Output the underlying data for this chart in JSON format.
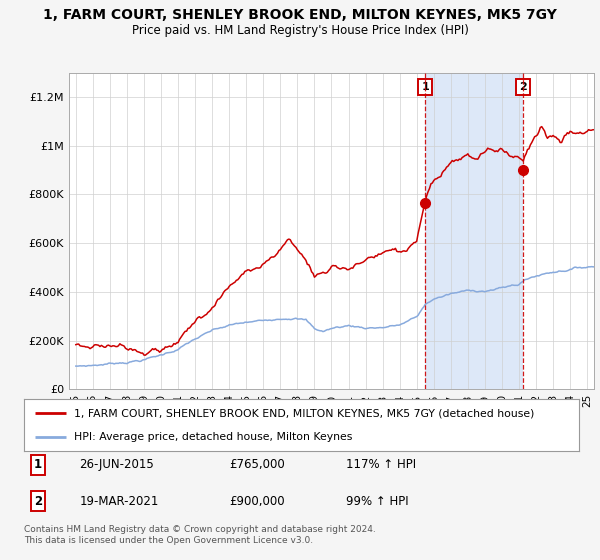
{
  "title": "1, FARM COURT, SHENLEY BROOK END, MILTON KEYNES, MK5 7GY",
  "subtitle": "Price paid vs. HM Land Registry's House Price Index (HPI)",
  "legend_line1": "1, FARM COURT, SHENLEY BROOK END, MILTON KEYNES, MK5 7GY (detached house)",
  "legend_line2": "HPI: Average price, detached house, Milton Keynes",
  "annotation1_label": "1",
  "annotation1_date": "26-JUN-2015",
  "annotation1_price": "£765,000",
  "annotation1_hpi": "117% ↑ HPI",
  "annotation2_label": "2",
  "annotation2_date": "19-MAR-2021",
  "annotation2_price": "£900,000",
  "annotation2_hpi": "99% ↑ HPI",
  "footnote": "Contains HM Land Registry data © Crown copyright and database right 2024.\nThis data is licensed under the Open Government Licence v3.0.",
  "red_color": "#cc0000",
  "blue_color": "#88aadd",
  "shade_color": "#dde8f8",
  "background_color": "#f5f5f5",
  "plot_bg_color": "#ffffff",
  "ylim": [
    0,
    1300000
  ],
  "yticks": [
    0,
    200000,
    400000,
    600000,
    800000,
    1000000,
    1200000
  ],
  "ytick_labels": [
    "£0",
    "£200K",
    "£400K",
    "£600K",
    "£800K",
    "£1M",
    "£1.2M"
  ],
  "sale1_year": 2015.5,
  "sale1_value": 765000,
  "sale2_year": 2021.22,
  "sale2_value": 900000,
  "xmin": 1994.6,
  "xmax": 2025.4
}
